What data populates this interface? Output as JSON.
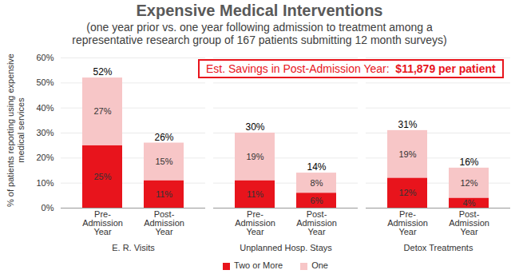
{
  "chart_data": {
    "type": "bar",
    "stacked": true,
    "title": "Expensive Medical Interventions",
    "subtitle": "(one year prior vs. one year following admission to treatment among a representative research group of 167 patients submitting 12 month surveys)",
    "y_label": "% of patients reporting using expensive medical services",
    "categories": [
      "Pre-\nAdmission\nYear",
      "Post-\nAdmission\nYear",
      "Pre-\nAdmission\nYear",
      "Post-\nAdmission\nYear",
      "Pre-\nAdmission\nYear",
      "Post-\nAdmission\nYear"
    ],
    "groups": [
      "E. R. Visits",
      "E. R. Visits",
      "Unplanned Hosp. Stays",
      "Unplanned Hosp. Stays",
      "Detox Treatments",
      "Detox Treatments"
    ],
    "series": [
      {
        "name": "Two or More",
        "color": "#e8141c",
        "values": [
          25,
          11,
          11,
          6,
          12,
          4
        ],
        "value_labels": [
          "25%",
          "11%",
          "11%",
          "6%",
          "12%",
          "4%"
        ]
      },
      {
        "name": "One",
        "color": "#f7c6c7",
        "values": [
          27,
          15,
          19,
          8,
          19,
          12
        ],
        "value_labels": [
          "27%",
          "15%",
          "19%",
          "8%",
          "19%",
          "12%"
        ]
      }
    ],
    "totals": [
      52,
      26,
      30,
      14,
      31,
      16
    ],
    "total_labels": [
      "52%",
      "26%",
      "30%",
      "14%",
      "31%",
      "16%"
    ],
    "ylim": [
      0,
      60
    ],
    "yticks": [
      {
        "value": 0,
        "label": "0%"
      },
      {
        "value": 10,
        "label": "10%"
      },
      {
        "value": 20,
        "label": "20%"
      },
      {
        "value": 30,
        "label": "30%"
      },
      {
        "value": 40,
        "label": "40%"
      },
      {
        "value": 50,
        "label": "50%"
      },
      {
        "value": 60,
        "label": "60%"
      }
    ],
    "grid": true,
    "data_labels": true,
    "legend": "bottom",
    "annotation": {
      "label": "Est. Savings in Post-Admission Year:",
      "amount": "$11,879 per patient"
    }
  }
}
